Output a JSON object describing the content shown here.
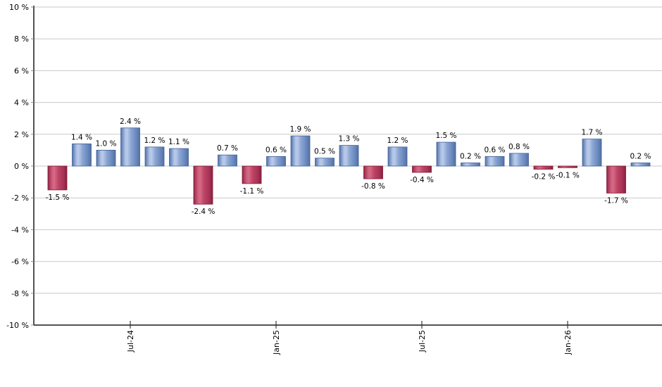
{
  "chart_data": {
    "type": "bar",
    "title": "",
    "xlabel": "",
    "ylabel": "",
    "unit": "%",
    "ylim": [
      -10,
      10
    ],
    "ytick_step": 2,
    "ytick_labels": [
      "10 %",
      "8 %",
      "6 %",
      "4 %",
      "2 %",
      "0 %",
      "-2 %",
      "-4 %",
      "-6 %",
      "-8 %",
      "-10 %"
    ],
    "ytick_values": [
      10,
      8,
      6,
      4,
      2,
      0,
      -2,
      -4,
      -6,
      -8,
      -10
    ],
    "bar_count": 25,
    "values": [
      -1.5,
      1.4,
      1.0,
      2.4,
      1.2,
      1.1,
      -2.4,
      0.7,
      -1.1,
      0.6,
      1.9,
      0.5,
      1.3,
      -0.8,
      1.2,
      -0.4,
      1.5,
      0.2,
      0.6,
      0.8,
      -0.2,
      -0.1,
      1.7,
      -1.7,
      0.2
    ],
    "value_labels": [
      "-1.5 %",
      "1.4 %",
      "1.0 %",
      "2.4 %",
      "1.2 %",
      "1.1 %",
      "-2.4 %",
      "0.7 %",
      "-1.1 %",
      "0.6 %",
      "1.9 %",
      "0.5 %",
      "1.3 %",
      "-0.8 %",
      "1.2 %",
      "-0.4 %",
      "1.5 %",
      "0.2 %",
      "0.6 %",
      "0.8 %",
      "-0.2 %",
      "-0.1 %",
      "1.7 %",
      "-1.7 %",
      "0.2 %"
    ],
    "xtick_labels": [
      {
        "label": "Jul-24",
        "bar_index": 3
      },
      {
        "label": "Jan-25",
        "bar_index": 9
      },
      {
        "label": "Jul-25",
        "bar_index": 15
      },
      {
        "label": "Jan-26",
        "bar_index": 21
      }
    ],
    "grid": true,
    "legend": false,
    "colors": {
      "background": "#ffffff",
      "gridline": "#c9c9c9",
      "axis": "#1a1a1a",
      "tick": "#1a1a1a",
      "label_text": "#000000",
      "positive_gradient": [
        {
          "offset": "0%",
          "color": "#4f6da3"
        },
        {
          "offset": "5%",
          "color": "#6584b8"
        },
        {
          "offset": "24%",
          "color": "#b2c4e6"
        },
        {
          "offset": "34%",
          "color": "#b9cae9"
        },
        {
          "offset": "55%",
          "color": "#89a4d1"
        },
        {
          "offset": "80%",
          "color": "#6a8ac0"
        },
        {
          "offset": "100%",
          "color": "#53719f"
        }
      ],
      "positive_stroke": "#44619b",
      "negative_gradient": [
        {
          "offset": "0%",
          "color": "#8c1e3c"
        },
        {
          "offset": "5%",
          "color": "#a53253"
        },
        {
          "offset": "24%",
          "color": "#d0617f"
        },
        {
          "offset": "34%",
          "color": "#d56a85"
        },
        {
          "offset": "55%",
          "color": "#bc4465"
        },
        {
          "offset": "80%",
          "color": "#a93457"
        },
        {
          "offset": "100%",
          "color": "#8a2040"
        }
      ],
      "negative_stroke": "#7d1b36"
    }
  }
}
